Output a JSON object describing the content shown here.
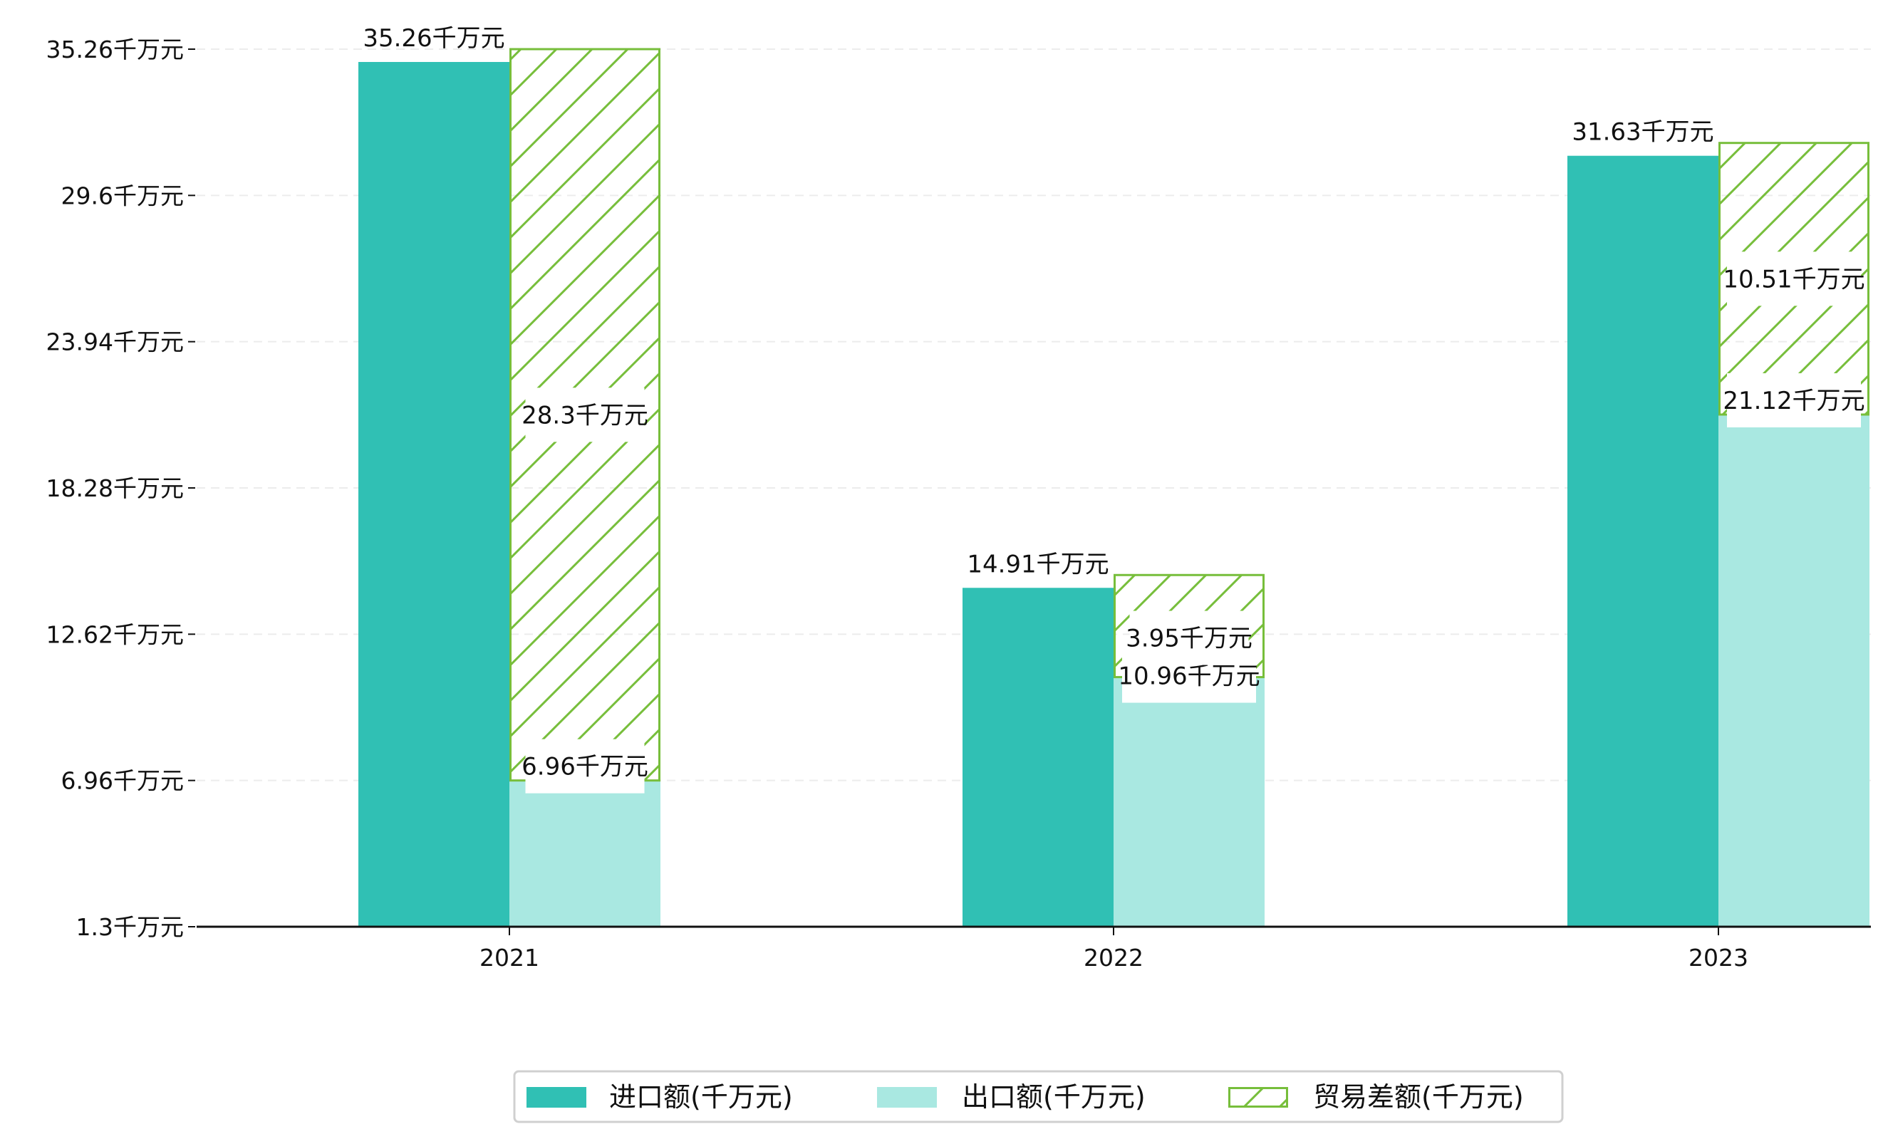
{
  "chart_data": {
    "type": "bar",
    "title": "",
    "xlabel": "",
    "ylabel": "",
    "categories": [
      "2021",
      "2022",
      "2023"
    ],
    "ylim": [
      1.3,
      35.26
    ],
    "yticks": [
      1.3,
      6.96,
      12.62,
      18.28,
      23.94,
      29.6,
      35.26
    ],
    "ytick_labels": [
      "1.3千万元",
      "6.96千万元",
      "12.62千万元",
      "18.28千万元",
      "23.94千万元",
      "29.6千万元",
      "35.26千万元"
    ],
    "grid": "horizontal-dashed",
    "legend_position": "bottom-center",
    "series": [
      {
        "name": "进口额(千万元)",
        "color": "#30C0B4",
        "values": [
          35.26,
          14.91,
          31.63
        ],
        "labels": [
          "35.26千万元",
          "14.91千万元",
          "31.63千万元"
        ]
      },
      {
        "name": "出口额(千万元)",
        "color": "#A9E8E1",
        "values": [
          6.96,
          10.96,
          21.12
        ],
        "labels": [
          "6.96千万元",
          "10.96千万元",
          "21.12千万元"
        ]
      },
      {
        "name": "贸易差额(千万元)",
        "color": "#77BE3B",
        "hatch": "diagonal",
        "stacked_on": "出口额(千万元)",
        "values": [
          28.3,
          3.95,
          10.51
        ],
        "labels": [
          "28.3千万元",
          "3.95千万元",
          "10.51千万元"
        ]
      }
    ]
  }
}
